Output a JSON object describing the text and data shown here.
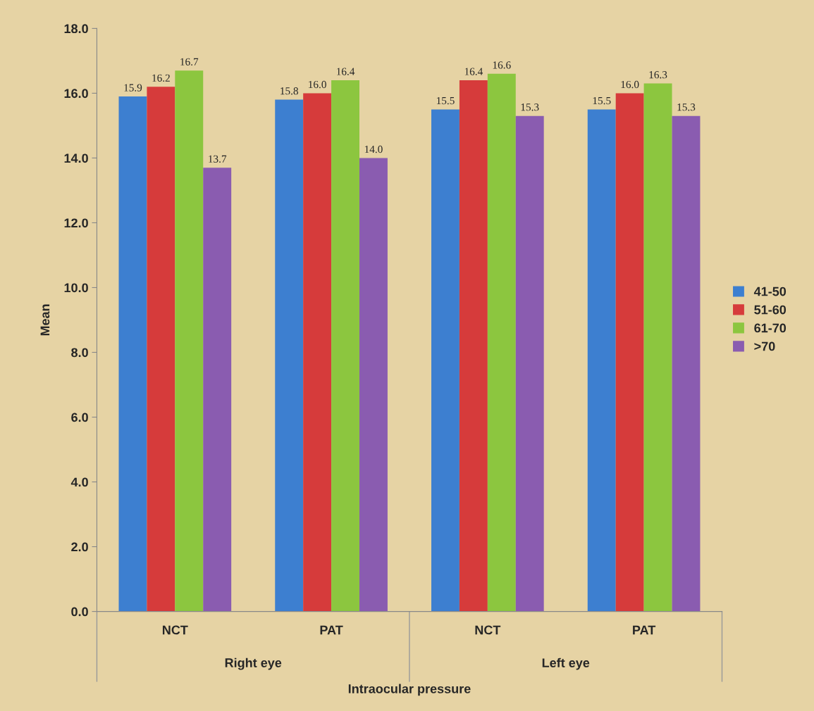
{
  "chart_data": {
    "type": "bar",
    "xlabel": "Intraocular pressure",
    "ylabel": "Mean",
    "categories": [
      "NCT",
      "PAT",
      "NCT",
      "PAT"
    ],
    "annotations": [
      "Right eye",
      "Left eye"
    ],
    "series": [
      {
        "name": "41-50",
        "color": "#3d7fd0",
        "values": [
          15.9,
          15.8,
          15.5,
          15.5
        ],
        "value_labels": [
          "15.9",
          "15.8",
          "15.5",
          "15.5"
        ]
      },
      {
        "name": "51-60",
        "color": "#d63b3b",
        "values": [
          16.2,
          16.0,
          16.4,
          16.0
        ],
        "value_labels": [
          "16.2",
          "16.0",
          "16.4",
          "16.0"
        ]
      },
      {
        "name": "61-70",
        "color": "#8cc63f",
        "values": [
          16.7,
          16.4,
          16.6,
          16.3
        ],
        "value_labels": [
          "16.7",
          "16.4",
          "16.6",
          "16.3"
        ]
      },
      {
        "name": ">70",
        "color": "#8a5cb0",
        "values": [
          13.7,
          14.0,
          15.3,
          15.3
        ],
        "value_labels": [
          "13.7",
          "14.0",
          "15.3",
          "15.3"
        ]
      }
    ],
    "ylim": [
      0,
      18
    ],
    "yticks": [
      {
        "value": 0,
        "label": "0.0"
      },
      {
        "value": 2,
        "label": "2.0"
      },
      {
        "value": 4,
        "label": "4.0"
      },
      {
        "value": 6,
        "label": "6.0"
      },
      {
        "value": 8,
        "label": "8.0"
      },
      {
        "value": 10,
        "label": "10.0"
      },
      {
        "value": 12,
        "label": "12.0"
      },
      {
        "value": 14,
        "label": "14.0"
      },
      {
        "value": 16,
        "label": "16.0"
      },
      {
        "value": 18,
        "label": "18.0"
      }
    ],
    "grid": false,
    "legend": "right"
  }
}
